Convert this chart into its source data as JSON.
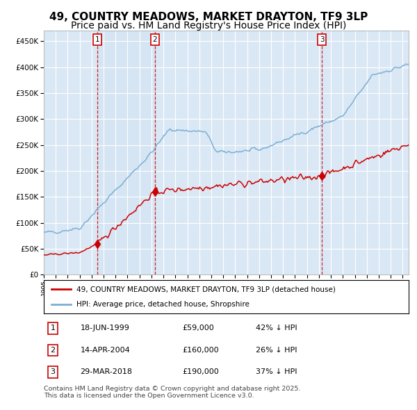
{
  "title": "49, COUNTRY MEADOWS, MARKET DRAYTON, TF9 3LP",
  "subtitle": "Price paid vs. HM Land Registry's House Price Index (HPI)",
  "legend_line1": "49, COUNTRY MEADOWS, MARKET DRAYTON, TF9 3LP (detached house)",
  "legend_line2": "HPI: Average price, detached house, Shropshire",
  "footnote": "Contains HM Land Registry data © Crown copyright and database right 2025.\nThis data is licensed under the Open Government Licence v3.0.",
  "transactions": [
    {
      "num": 1,
      "date": "18-JUN-1999",
      "price": 59000,
      "hpi_pct": "42% ↓ HPI"
    },
    {
      "num": 2,
      "date": "14-APR-2004",
      "price": 160000,
      "hpi_pct": "26% ↓ HPI"
    },
    {
      "num": 3,
      "date": "29-MAR-2018",
      "price": 190000,
      "hpi_pct": "37% ↓ HPI"
    }
  ],
  "transaction_dates_decimal": [
    1999.46,
    2004.28,
    2018.24
  ],
  "transaction_prices": [
    59000,
    160000,
    190000
  ],
  "ylim": [
    0,
    470000
  ],
  "yticks": [
    0,
    50000,
    100000,
    150000,
    200000,
    250000,
    300000,
    350000,
    400000,
    450000
  ],
  "hpi_color": "#7BAFD4",
  "property_color": "#CC0000",
  "dashed_line_color": "#CC0000",
  "background_color": "#DAE8F5",
  "plot_bg_color": "#FFFFFF",
  "title_fontsize": 11,
  "subtitle_fontsize": 10
}
